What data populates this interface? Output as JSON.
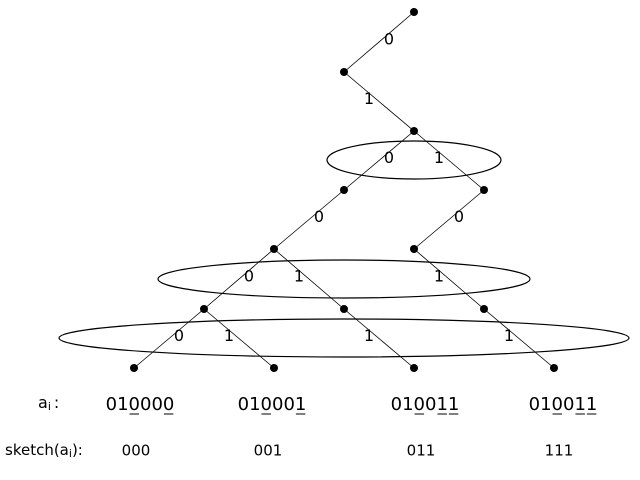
{
  "edge_labels": [
    "0",
    "1",
    "0",
    "1",
    "0",
    "0",
    "0",
    "1",
    "1",
    "0",
    "1",
    "1",
    "1"
  ],
  "leaves": [
    {
      "label": "010000",
      "underlined": [
        2,
        5
      ],
      "sketch": "000"
    },
    {
      "label": "010001",
      "underlined": [
        2,
        5
      ],
      "sketch": "001"
    },
    {
      "label": "010011",
      "underlined": [
        2,
        4,
        5
      ],
      "sketch": "011"
    },
    {
      "label": "010011",
      "underlined": [
        2,
        4,
        5
      ],
      "sketch": "111"
    }
  ],
  "row_labels": {
    "a": {
      "base": "a",
      "sub": "i",
      "suffix": ":"
    },
    "sketch": {
      "base": "sketch(a",
      "sub": "i",
      "suffix": "):"
    }
  }
}
